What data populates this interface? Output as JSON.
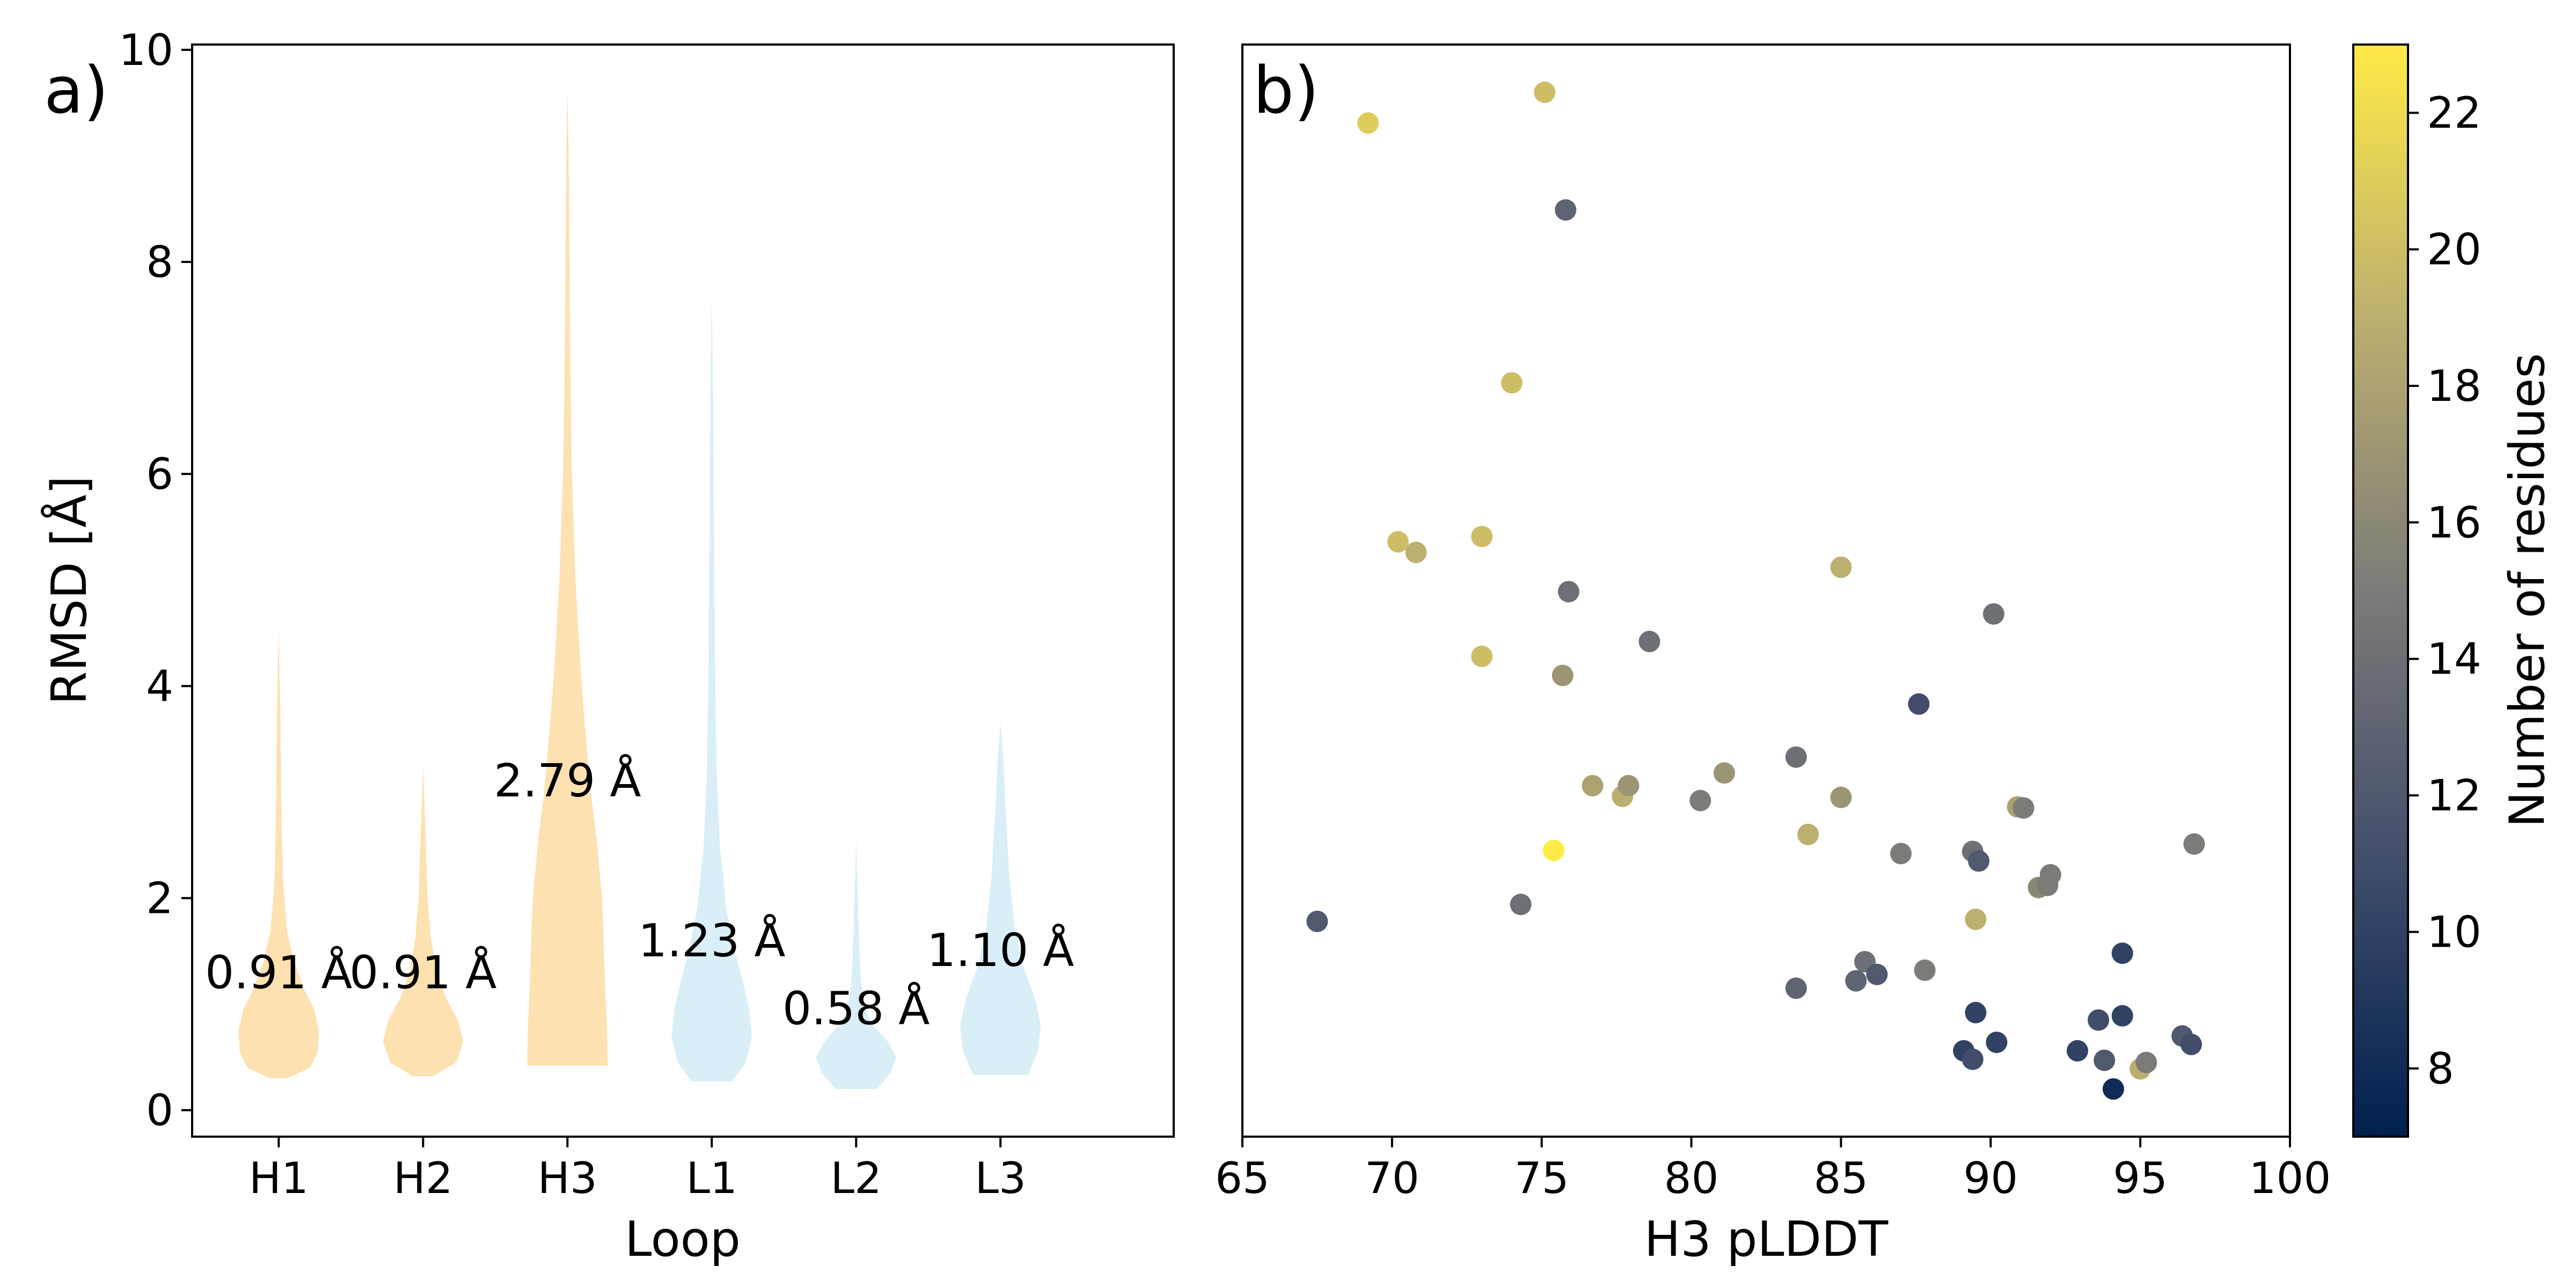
{
  "panel_labels": {
    "a": "a)",
    "b": "b)"
  },
  "colors": {
    "heavy": "#fde1b1",
    "light": "#d9eef7",
    "axis": "#000000"
  },
  "chart_data": [
    {
      "type": "violin",
      "panel": "a",
      "xlabel": "Loop",
      "ylabel": "RMSD [Å]",
      "ylim": [
        -0.25,
        10.05
      ],
      "yticks": [
        0,
        2,
        4,
        6,
        8,
        10
      ],
      "categories": [
        "H1",
        "H2",
        "H3",
        "L1",
        "L2",
        "L3"
      ],
      "violins": [
        {
          "name": "H1",
          "min": 0.3,
          "max": 4.57,
          "label": "0.91 Å",
          "label_y": 1.15,
          "group": "heavy",
          "profile": [
            [
              0.3,
              0.22
            ],
            [
              0.4,
              0.78
            ],
            [
              0.55,
              0.97
            ],
            [
              0.75,
              1.0
            ],
            [
              0.95,
              0.88
            ],
            [
              1.15,
              0.62
            ],
            [
              1.4,
              0.38
            ],
            [
              1.7,
              0.2
            ],
            [
              2.2,
              0.1
            ],
            [
              3.0,
              0.06
            ],
            [
              3.8,
              0.04
            ],
            [
              4.57,
              0.0
            ]
          ]
        },
        {
          "name": "H2",
          "min": 0.32,
          "max": 3.25,
          "label": "0.91 Å",
          "label_y": 1.15,
          "group": "heavy",
          "profile": [
            [
              0.32,
              0.25
            ],
            [
              0.45,
              0.82
            ],
            [
              0.65,
              1.0
            ],
            [
              0.85,
              0.86
            ],
            [
              1.05,
              0.58
            ],
            [
              1.3,
              0.34
            ],
            [
              1.6,
              0.2
            ],
            [
              2.0,
              0.11
            ],
            [
              2.5,
              0.07
            ],
            [
              3.25,
              0.0
            ]
          ]
        },
        {
          "name": "H3",
          "min": 0.42,
          "max": 9.6,
          "label": "2.79 Å",
          "label_y": 2.96,
          "group": "heavy",
          "profile": [
            [
              0.42,
              1.0
            ],
            [
              0.8,
              0.98
            ],
            [
              1.2,
              0.93
            ],
            [
              1.6,
              0.9
            ],
            [
              2.0,
              0.86
            ],
            [
              2.5,
              0.74
            ],
            [
              3.0,
              0.58
            ],
            [
              3.6,
              0.44
            ],
            [
              4.2,
              0.32
            ],
            [
              5.0,
              0.2
            ],
            [
              6.0,
              0.11
            ],
            [
              7.0,
              0.07
            ],
            [
              8.0,
              0.05
            ],
            [
              9.0,
              0.03
            ],
            [
              9.6,
              0.0
            ]
          ]
        },
        {
          "name": "L1",
          "min": 0.27,
          "max": 7.7,
          "label": "1.23 Å",
          "label_y": 1.45,
          "group": "light",
          "profile": [
            [
              0.27,
              0.5
            ],
            [
              0.45,
              0.85
            ],
            [
              0.7,
              1.0
            ],
            [
              0.95,
              0.93
            ],
            [
              1.2,
              0.78
            ],
            [
              1.5,
              0.57
            ],
            [
              1.9,
              0.36
            ],
            [
              2.5,
              0.2
            ],
            [
              3.2,
              0.12
            ],
            [
              4.2,
              0.08
            ],
            [
              5.5,
              0.05
            ],
            [
              6.8,
              0.03
            ],
            [
              7.7,
              0.0
            ]
          ]
        },
        {
          "name": "L2",
          "min": 0.2,
          "max": 2.55,
          "label": "0.58 Å",
          "label_y": 0.81,
          "group": "light",
          "profile": [
            [
              0.2,
              0.52
            ],
            [
              0.35,
              0.85
            ],
            [
              0.5,
              1.0
            ],
            [
              0.65,
              0.78
            ],
            [
              0.8,
              0.42
            ],
            [
              0.95,
              0.22
            ],
            [
              1.2,
              0.12
            ],
            [
              1.6,
              0.07
            ],
            [
              2.0,
              0.04
            ],
            [
              2.55,
              0.0
            ]
          ]
        },
        {
          "name": "L3",
          "min": 0.33,
          "max": 3.65,
          "label": "1.10 Å",
          "label_y": 1.36,
          "group": "light",
          "profile": [
            [
              0.33,
              0.68
            ],
            [
              0.55,
              0.93
            ],
            [
              0.8,
              1.0
            ],
            [
              1.05,
              0.86
            ],
            [
              1.35,
              0.57
            ],
            [
              1.7,
              0.36
            ],
            [
              2.2,
              0.22
            ],
            [
              2.8,
              0.13
            ],
            [
              3.3,
              0.07
            ],
            [
              3.65,
              0.0
            ]
          ]
        }
      ]
    },
    {
      "type": "scatter",
      "panel": "b",
      "xlabel": "H3 pLDDT",
      "xlim": [
        65,
        100
      ],
      "xticks": [
        65,
        70,
        75,
        80,
        85,
        90,
        95,
        100
      ],
      "ylim": [
        -0.25,
        10.05
      ],
      "colorbar": {
        "label": "Number of residues",
        "range": [
          7,
          23
        ],
        "ticks": [
          8,
          10,
          12,
          14,
          16,
          18,
          20,
          22
        ]
      },
      "points": [
        [
          69.2,
          9.31,
          21
        ],
        [
          75.1,
          9.6,
          20
        ],
        [
          75.8,
          8.49,
          13
        ],
        [
          74.0,
          6.86,
          20
        ],
        [
          70.2,
          5.36,
          20
        ],
        [
          70.8,
          5.26,
          19
        ],
        [
          73.0,
          5.41,
          20
        ],
        [
          73.0,
          4.28,
          20
        ],
        [
          75.9,
          4.89,
          14
        ],
        [
          75.7,
          4.1,
          17
        ],
        [
          78.6,
          4.42,
          14
        ],
        [
          76.7,
          3.06,
          18
        ],
        [
          77.7,
          2.96,
          19
        ],
        [
          77.9,
          3.06,
          17
        ],
        [
          81.1,
          3.18,
          17
        ],
        [
          80.3,
          2.92,
          15
        ],
        [
          83.5,
          3.33,
          14
        ],
        [
          85.0,
          5.12,
          19
        ],
        [
          85.0,
          2.95,
          17
        ],
        [
          83.9,
          2.6,
          19
        ],
        [
          87.0,
          2.42,
          15
        ],
        [
          87.6,
          3.83,
          11
        ],
        [
          90.1,
          4.68,
          14
        ],
        [
          89.4,
          2.44,
          14
        ],
        [
          89.6,
          2.35,
          12
        ],
        [
          90.9,
          2.86,
          18
        ],
        [
          91.1,
          2.85,
          15
        ],
        [
          91.6,
          2.1,
          16
        ],
        [
          92.0,
          2.22,
          15
        ],
        [
          91.9,
          2.12,
          15
        ],
        [
          96.8,
          2.51,
          15
        ],
        [
          89.5,
          1.8,
          19
        ],
        [
          67.5,
          1.78,
          12
        ],
        [
          74.3,
          1.94,
          14
        ],
        [
          75.4,
          2.45,
          23
        ],
        [
          85.8,
          1.4,
          14
        ],
        [
          86.2,
          1.28,
          12
        ],
        [
          85.5,
          1.22,
          13
        ],
        [
          83.5,
          1.15,
          13
        ],
        [
          87.8,
          1.32,
          15
        ],
        [
          94.4,
          1.48,
          10
        ],
        [
          89.5,
          0.92,
          10
        ],
        [
          90.2,
          0.64,
          10
        ],
        [
          89.1,
          0.56,
          10
        ],
        [
          89.4,
          0.48,
          11
        ],
        [
          92.9,
          0.56,
          10
        ],
        [
          93.6,
          0.85,
          11
        ],
        [
          94.4,
          0.89,
          10
        ],
        [
          93.8,
          0.47,
          12
        ],
        [
          94.1,
          0.2,
          8
        ],
        [
          95.0,
          0.39,
          19
        ],
        [
          95.2,
          0.45,
          15
        ],
        [
          96.4,
          0.7,
          12
        ],
        [
          96.7,
          0.62,
          11
        ]
      ]
    }
  ]
}
